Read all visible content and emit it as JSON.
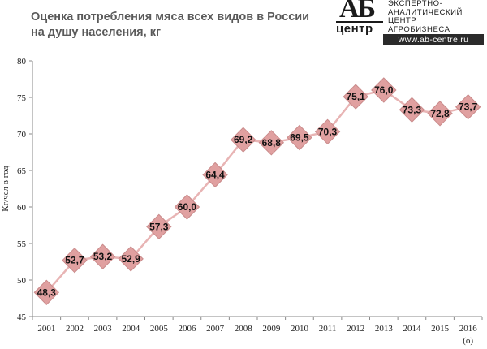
{
  "title_line1": "Оценка потребления мяса всех видов в России",
  "title_line2": "на душу населения, кг",
  "logo": {
    "mark_top": "АБ",
    "mark_bottom": "центр",
    "lines": [
      "ЭКСПЕРТНО-",
      "АНАЛИТИЧЕСКИЙ",
      "ЦЕНТР",
      "АГРОБИЗНЕСА"
    ],
    "url": "www.ab-centre.ru"
  },
  "colors": {
    "line": "#e8b4b4",
    "marker_fill": "#e0a0a0",
    "marker_stroke": "#c98a8a",
    "axis": "#888888"
  },
  "chart_data": {
    "type": "line",
    "title": "Оценка потребления мяса всех видов в России на душу населения, кг",
    "ylabel": "Кг/чел в год",
    "xlabel": "",
    "ylim": [
      45,
      80
    ],
    "yticks": [
      45,
      50,
      55,
      60,
      65,
      70,
      75,
      80
    ],
    "categories": [
      "2001",
      "2002",
      "2003",
      "2004",
      "2005",
      "2006",
      "2007",
      "2008",
      "2009",
      "2010",
      "2011",
      "2012",
      "2013",
      "2014",
      "2015",
      "2016"
    ],
    "category_notes": {
      "2016": "(о)"
    },
    "series": [
      {
        "values": [
          48.3,
          52.7,
          53.2,
          52.9,
          57.3,
          60.0,
          64.4,
          69.2,
          68.8,
          69.5,
          70.3,
          75.1,
          76.0,
          73.3,
          72.8,
          73.7
        ],
        "labels": [
          "48,3",
          "52,7",
          "53,2",
          "52,9",
          "57,3",
          "60,0",
          "64,4",
          "69,2",
          "68,8",
          "69,5",
          "70,3",
          "75,1",
          "76,0",
          "73,3",
          "72,8",
          "73,7"
        ]
      }
    ],
    "marker": "diamond",
    "grid": false
  }
}
